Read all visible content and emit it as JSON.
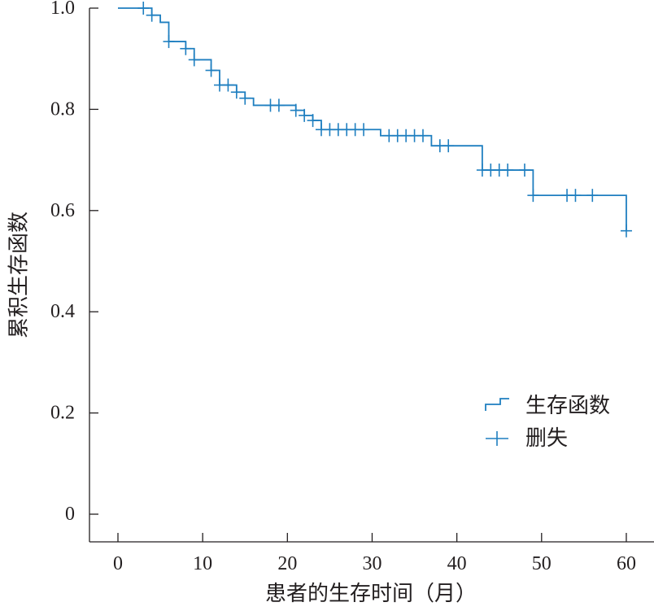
{
  "chart_data": {
    "type": "line",
    "subtype": "kaplan-meier step",
    "xlabel": "患者的生存时间（月）",
    "ylabel": "累积生存函数",
    "xlim": [
      -3,
      63
    ],
    "ylim": [
      0,
      1.0
    ],
    "xticks": [
      0,
      10,
      20,
      30,
      40,
      50,
      60
    ],
    "xtick_labels": [
      "0",
      "10",
      "20",
      "30",
      "40",
      "50",
      "60"
    ],
    "yticks": [
      0,
      0.2,
      0.4,
      0.6,
      0.8,
      1.0
    ],
    "ytick_labels": [
      "0",
      "0.2",
      "0.4",
      "0.6",
      "0.8",
      "1.0"
    ],
    "grid": false,
    "legend_position": "right",
    "color": "#1f7fc0",
    "series": [
      {
        "name": "生存函数",
        "kind": "step",
        "x": [
          0,
          4,
          5,
          6,
          8,
          9,
          11,
          12,
          14,
          15,
          16,
          21,
          22,
          23,
          24,
          31,
          37,
          43,
          49,
          60
        ],
        "y": [
          1.0,
          0.986,
          0.972,
          0.934,
          0.92,
          0.898,
          0.877,
          0.848,
          0.834,
          0.822,
          0.808,
          0.798,
          0.788,
          0.778,
          0.76,
          0.748,
          0.728,
          0.68,
          0.63,
          0.56
        ]
      },
      {
        "name": "删失",
        "kind": "censor",
        "x": [
          3,
          4,
          6,
          8,
          9,
          11,
          12,
          13,
          14,
          15,
          18,
          19,
          21,
          22,
          23,
          24,
          25,
          26,
          27,
          28,
          29,
          32,
          33,
          34,
          35,
          36,
          38,
          39,
          43,
          44,
          45,
          46,
          48,
          49,
          53,
          54,
          56,
          60
        ],
        "y": [
          1.0,
          0.986,
          0.934,
          0.92,
          0.898,
          0.877,
          0.848,
          0.848,
          0.834,
          0.822,
          0.808,
          0.808,
          0.798,
          0.788,
          0.778,
          0.76,
          0.76,
          0.76,
          0.76,
          0.76,
          0.76,
          0.748,
          0.748,
          0.748,
          0.748,
          0.748,
          0.728,
          0.728,
          0.68,
          0.68,
          0.68,
          0.68,
          0.68,
          0.63,
          0.63,
          0.63,
          0.63,
          0.56
        ]
      }
    ]
  }
}
